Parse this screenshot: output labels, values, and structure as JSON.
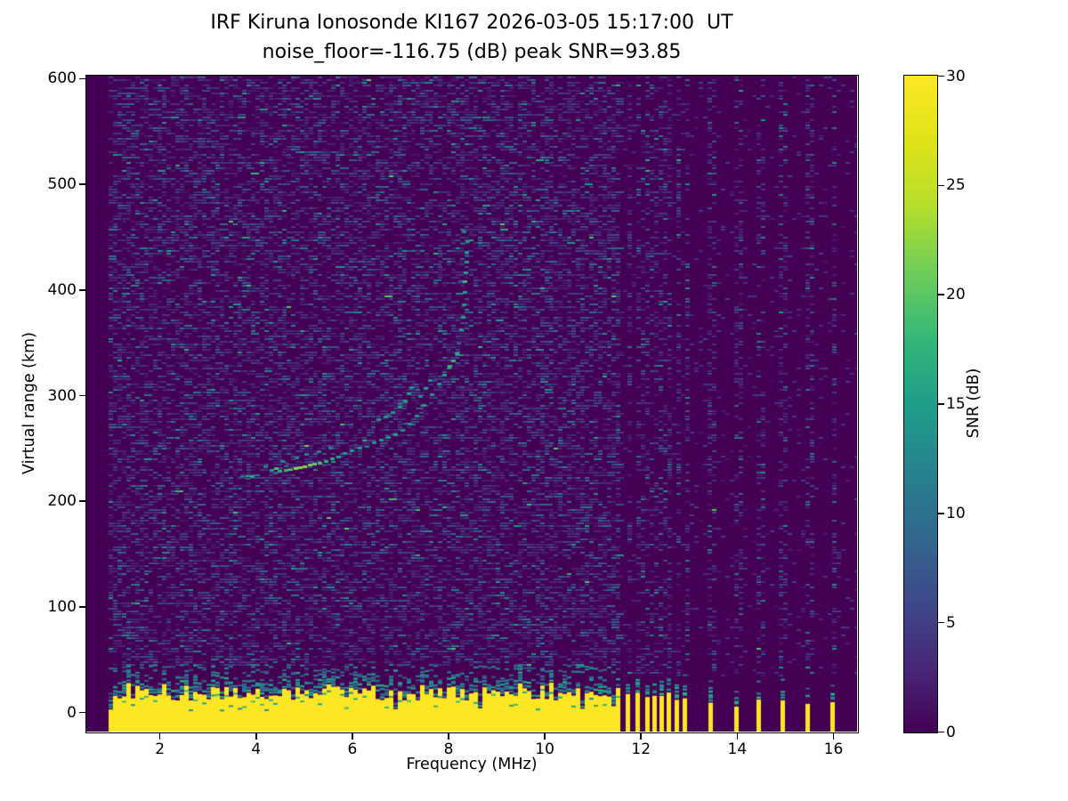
{
  "chart_data": {
    "type": "heatmap",
    "title": "IRF Kiruna Ionosonde KI167 2026-03-05 15:17:00  UT",
    "subtitle": "noise_floor=-116.75 (dB) peak SNR=93.85",
    "xlabel": "Frequency (MHz)",
    "ylabel": "Virtual range (km)",
    "xlim": [
      0.48,
      16.5
    ],
    "ylim": [
      -18.5,
      602.5
    ],
    "xticks": [
      2,
      4,
      6,
      8,
      10,
      12,
      14,
      16
    ],
    "yticks": [
      0,
      100,
      200,
      300,
      400,
      500,
      600
    ],
    "grid": false,
    "noise_floor_db": -116.75,
    "peak_snr_db": 93.85,
    "colorbar": {
      "label": "SNR (dB)",
      "min": 0,
      "max": 30,
      "ticks": [
        0,
        5,
        10,
        15,
        20,
        25,
        30
      ],
      "colormap": "viridis"
    },
    "colormap_stops": [
      [
        "0",
        "#440154"
      ],
      [
        "0.1",
        "#482878"
      ],
      [
        "0.2",
        "#3e4989"
      ],
      [
        "0.3",
        "#31688e"
      ],
      [
        "0.4",
        "#26828e"
      ],
      [
        "0.5",
        "#1f9e89"
      ],
      [
        "0.6",
        "#35b779"
      ],
      [
        "0.7",
        "#6dcd59"
      ],
      [
        "0.8",
        "#b4de2c"
      ],
      [
        "0.9",
        "#dfe318"
      ],
      [
        "1",
        "#fde725"
      ]
    ],
    "signal": {
      "noise_background_color": "#440154",
      "ground_clutter": {
        "freq_start_mhz": 0.95,
        "freq_end_mhz": 11.57,
        "top_km_typical": [
          12,
          28
        ],
        "fringe_top_km": 46,
        "value_db": 30
      },
      "sparse_sounding_freqs_mhz": [
        11.72,
        11.94,
        12.13,
        12.28,
        12.43,
        12.57,
        12.74,
        12.91,
        13.44,
        13.98,
        14.44,
        14.94,
        15.46,
        15.98
      ],
      "noise_speckle": {
        "dense_region_density": 0.42,
        "sparse_region_density": 0.05,
        "stripe_column_density": 0.32
      },
      "echo_trace_points": [
        [
          3.72,
          224,
          0.55
        ],
        [
          3.82,
          224,
          0.8
        ],
        [
          3.92,
          223,
          0.6
        ],
        [
          4.2,
          233,
          0.3
        ],
        [
          4.32,
          229,
          0.5
        ],
        [
          4.42,
          231,
          0.8
        ],
        [
          4.5,
          228,
          0.65
        ],
        [
          4.62,
          229,
          0.7
        ],
        [
          4.72,
          230,
          0.9
        ],
        [
          4.82,
          231,
          1.0
        ],
        [
          4.92,
          232,
          1.0
        ],
        [
          5.02,
          233,
          1.0
        ],
        [
          5.12,
          234,
          0.95
        ],
        [
          5.22,
          235,
          0.9
        ],
        [
          5.32,
          236,
          0.8
        ],
        [
          5.45,
          238,
          0.7
        ],
        [
          5.58,
          240,
          0.6
        ],
        [
          5.72,
          242,
          0.55
        ],
        [
          5.85,
          245,
          0.5
        ],
        [
          6.0,
          248,
          0.45
        ],
        [
          6.15,
          250,
          0.5
        ],
        [
          6.3,
          252,
          0.4
        ],
        [
          6.45,
          255,
          0.45
        ],
        [
          6.6,
          258,
          0.5
        ],
        [
          6.75,
          260,
          0.45
        ],
        [
          6.9,
          263,
          0.55
        ],
        [
          7.05,
          267,
          0.4
        ],
        [
          7.2,
          273,
          0.45
        ],
        [
          7.35,
          281,
          0.5
        ],
        [
          7.5,
          291,
          0.55
        ],
        [
          7.65,
          301,
          0.45
        ],
        [
          7.8,
          311,
          0.5
        ],
        [
          7.92,
          319,
          0.55
        ],
        [
          8.02,
          328,
          0.7
        ],
        [
          8.1,
          333,
          0.75
        ],
        [
          8.17,
          340,
          0.6
        ],
        [
          8.22,
          350,
          0.45
        ],
        [
          8.27,
          362,
          0.5
        ],
        [
          8.3,
          374,
          0.55
        ],
        [
          8.32,
          386,
          0.5
        ],
        [
          8.34,
          398,
          0.55
        ],
        [
          8.35,
          408,
          0.75
        ],
        [
          8.36,
          416,
          0.6
        ],
        [
          8.37,
          426,
          0.5
        ],
        [
          8.38,
          436,
          0.55
        ],
        [
          8.39,
          446,
          0.45
        ],
        [
          8.33,
          455,
          0.3
        ],
        [
          6.55,
          277,
          0.45
        ],
        [
          6.7,
          280,
          0.5
        ],
        [
          6.85,
          284,
          0.45
        ],
        [
          7.0,
          289,
          0.5
        ],
        [
          7.1,
          295,
          0.55
        ],
        [
          7.17,
          302,
          0.5
        ],
        [
          7.24,
          308,
          0.45
        ],
        [
          7.42,
          299,
          0.4
        ],
        [
          7.52,
          307,
          0.5
        ],
        [
          7.62,
          314,
          0.4
        ],
        [
          4.55,
          238,
          0.35
        ],
        [
          4.85,
          241,
          0.3
        ],
        [
          5.05,
          244,
          0.35
        ],
        [
          5.3,
          247,
          0.3
        ],
        [
          5.55,
          250,
          0.3
        ]
      ]
    }
  }
}
